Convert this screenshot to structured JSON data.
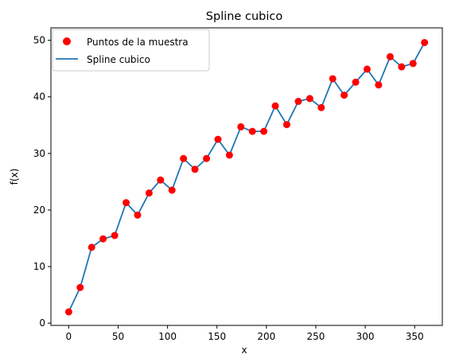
{
  "chart_data": {
    "type": "line",
    "title": "Spline cubico",
    "xlabel": "x",
    "ylabel": "f(x)",
    "xlim": [
      -18,
      378
    ],
    "ylim": [
      -0.4,
      52.2
    ],
    "xticks": [
      0,
      50,
      100,
      150,
      200,
      250,
      300,
      350
    ],
    "yticks": [
      0,
      10,
      20,
      30,
      40,
      50
    ],
    "grid": false,
    "legend_position": "top-left",
    "series": [
      {
        "name": "Puntos de la muestra",
        "kind": "scatter",
        "color": "#ff0000",
        "x": [
          0,
          11.6,
          23.2,
          34.8,
          46.5,
          58.1,
          69.7,
          81.3,
          92.9,
          104.5,
          116.1,
          127.7,
          139.4,
          151.0,
          162.6,
          174.2,
          185.8,
          197.4,
          209.0,
          220.6,
          232.3,
          243.9,
          255.5,
          267.1,
          278.7,
          290.3,
          301.9,
          313.5,
          325.2,
          336.8,
          348.4,
          360.0
        ],
        "y": [
          2.0,
          6.3,
          13.4,
          14.9,
          15.5,
          21.3,
          19.1,
          23.0,
          25.3,
          23.5,
          29.1,
          27.2,
          29.1,
          32.5,
          29.7,
          34.7,
          33.9,
          33.9,
          38.4,
          35.1,
          39.2,
          39.7,
          38.1,
          43.2,
          40.3,
          42.6,
          44.9,
          42.1,
          47.1,
          45.3,
          45.9,
          49.6
        ]
      },
      {
        "name": "Spline cubico",
        "kind": "line",
        "color": "#1f77b4",
        "x": [
          0,
          11.6,
          23.2,
          34.8,
          46.5,
          58.1,
          69.7,
          81.3,
          92.9,
          104.5,
          116.1,
          127.7,
          139.4,
          151.0,
          162.6,
          174.2,
          185.8,
          197.4,
          209.0,
          220.6,
          232.3,
          243.9,
          255.5,
          267.1,
          278.7,
          290.3,
          301.9,
          313.5,
          325.2,
          336.8,
          348.4,
          360.0
        ],
        "y": [
          2.0,
          6.3,
          13.4,
          14.9,
          15.5,
          21.3,
          19.1,
          23.0,
          25.3,
          23.5,
          29.1,
          27.2,
          29.1,
          32.5,
          29.7,
          34.7,
          33.9,
          33.9,
          38.4,
          35.1,
          39.2,
          39.7,
          38.1,
          43.2,
          40.3,
          42.6,
          44.9,
          42.1,
          47.1,
          45.3,
          45.9,
          49.6
        ]
      }
    ]
  }
}
